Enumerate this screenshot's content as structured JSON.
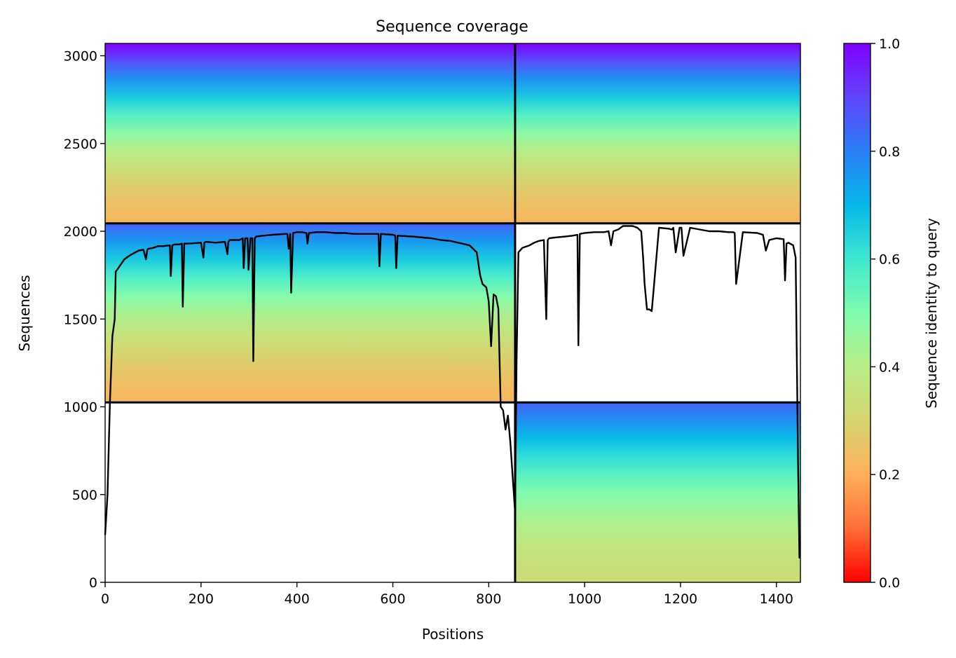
{
  "chart_data": {
    "type": "heatmap",
    "title": "Sequence coverage",
    "xlabel": "Positions",
    "ylabel": "Sequences",
    "xlim": [
      0,
      1450
    ],
    "ylim": [
      0,
      3070
    ],
    "x_ticks": [
      0,
      200,
      400,
      600,
      800,
      1000,
      1200,
      1400
    ],
    "y_ticks": [
      0,
      500,
      1000,
      1500,
      2000,
      2500,
      3000
    ],
    "colorbar": {
      "label": "Sequence identity to query",
      "range": [
        0,
        1
      ],
      "ticks": [
        "0.0",
        "0.2",
        "0.4",
        "0.6",
        "0.8",
        "1.0"
      ],
      "colormap": [
        "#ff0000",
        "#ff6e36",
        "#ffaf59",
        "#d5d570",
        "#b7ec86",
        "#80fbad",
        "#3ee8d0",
        "#04b8e8",
        "#2b7ff6",
        "#6145fd",
        "#8000ff"
      ]
    },
    "chain_boundaries": {
      "x": [
        855
      ],
      "y": [
        1025,
        2045
      ]
    },
    "blocks": [
      {
        "x": [
          0,
          855
        ],
        "y": [
          2045,
          3070
        ],
        "identity_bottom": 0.22,
        "identity_top": 1.0
      },
      {
        "x": [
          855,
          1450
        ],
        "y": [
          2045,
          3070
        ],
        "identity_bottom": 0.22,
        "identity_top": 1.0
      },
      {
        "x": [
          0,
          855
        ],
        "y": [
          1025,
          2045
        ],
        "identity_bottom": 0.22,
        "identity_top": 0.85
      },
      {
        "x": [
          855,
          1450
        ],
        "y": [
          0,
          1025
        ],
        "identity_bottom": 0.33,
        "identity_top": 0.85
      }
    ],
    "coverage_series": {
      "name": "",
      "color": "#000000",
      "x": [
        0,
        5,
        10,
        15,
        20,
        22,
        25,
        30,
        40,
        50,
        60,
        70,
        80,
        85,
        88,
        90,
        100,
        110,
        120,
        135,
        137,
        140,
        145,
        155,
        160,
        162,
        165,
        175,
        200,
        205,
        207,
        210,
        230,
        250,
        255,
        257,
        260,
        270,
        280,
        287,
        289,
        292,
        297,
        299,
        303,
        307,
        309,
        312,
        315,
        330,
        350,
        375,
        380,
        383,
        386,
        388,
        392,
        400,
        410,
        420,
        422,
        425,
        440,
        460,
        480,
        500,
        520,
        540,
        570,
        572,
        575,
        600,
        605,
        607,
        610,
        640,
        680,
        700,
        720,
        760,
        775,
        782,
        787,
        795,
        800,
        805,
        810,
        815,
        820,
        825,
        830,
        835,
        840,
        845,
        850,
        855,
        858,
        862,
        870,
        885,
        895,
        905,
        915,
        920,
        923,
        926,
        940,
        960,
        975,
        985,
        987,
        990,
        1000,
        1020,
        1040,
        1050,
        1055,
        1060,
        1070,
        1080,
        1085,
        1100,
        1110,
        1118,
        1122,
        1125,
        1130,
        1135,
        1140,
        1145,
        1155,
        1175,
        1182,
        1185,
        1190,
        1198,
        1202,
        1206,
        1220,
        1240,
        1260,
        1280,
        1300,
        1310,
        1313,
        1316,
        1330,
        1360,
        1372,
        1378,
        1385,
        1400,
        1415,
        1418,
        1421,
        1425,
        1435,
        1440,
        1445,
        1448,
        1449
      ],
      "y": [
        270,
        500,
        1020,
        1400,
        1500,
        1770,
        1780,
        1800,
        1840,
        1860,
        1875,
        1890,
        1895,
        1840,
        1895,
        1900,
        1905,
        1915,
        1915,
        1920,
        1745,
        1920,
        1925,
        1925,
        1930,
        1570,
        1930,
        1930,
        1935,
        1850,
        1935,
        1940,
        1935,
        1940,
        1870,
        1940,
        1950,
        1950,
        1950,
        1960,
        1790,
        1960,
        1960,
        1780,
        1960,
        1960,
        1260,
        1960,
        1970,
        1975,
        1980,
        1985,
        1985,
        1900,
        1985,
        1650,
        1990,
        1995,
        1995,
        1990,
        1930,
        1990,
        1995,
        1995,
        1990,
        1990,
        1985,
        1985,
        1985,
        1800,
        1985,
        1980,
        1975,
        1790,
        1975,
        1970,
        1960,
        1950,
        1945,
        1920,
        1880,
        1750,
        1700,
        1680,
        1600,
        1345,
        1640,
        1630,
        1560,
        1000,
        980,
        870,
        950,
        800,
        600,
        400,
        1250,
        1880,
        1905,
        1920,
        1935,
        1945,
        1950,
        1500,
        1950,
        1960,
        1965,
        1970,
        1975,
        1980,
        1350,
        1985,
        1990,
        1995,
        1995,
        2000,
        1920,
        2000,
        2010,
        2030,
        2030,
        2030,
        2020,
        2000,
        1850,
        1700,
        1555,
        1555,
        1545,
        1700,
        2020,
        2015,
        2010,
        2020,
        1880,
        2020,
        2020,
        1860,
        2020,
        2010,
        2000,
        2000,
        1995,
        1995,
        1990,
        1700,
        1995,
        1990,
        1980,
        1890,
        1950,
        1960,
        1955,
        1720,
        1930,
        1935,
        1920,
        1850,
        700,
        140,
        140
      ]
    }
  }
}
